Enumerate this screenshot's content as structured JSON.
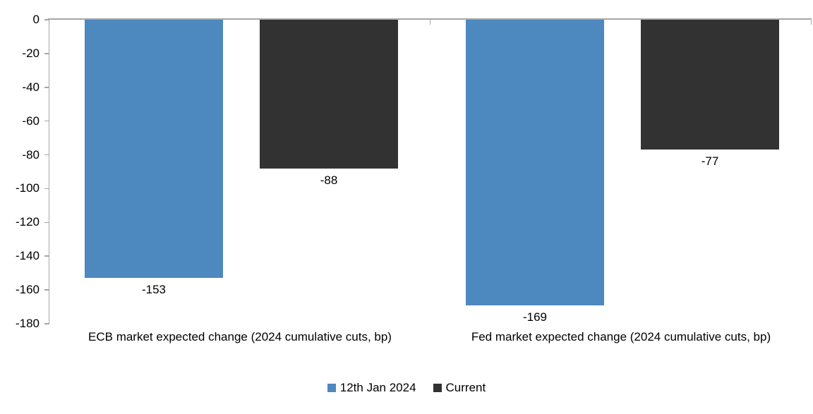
{
  "chart_data": {
    "type": "bar",
    "title": "",
    "categories": [
      "ECB market expected change (2024 cumulative cuts, bp)",
      "Fed market expected change (2024 cumulative cuts, bp)"
    ],
    "series": [
      {
        "name": "12th Jan 2024",
        "color": "#4D88BE",
        "values": [
          -153,
          -169
        ],
        "labels": [
          "-153",
          "-169"
        ]
      },
      {
        "name": "Current",
        "color": "#323232",
        "values": [
          -88,
          -77
        ],
        "labels": [
          "-88",
          "-77"
        ]
      }
    ],
    "y_axis": {
      "max": 0,
      "min": -180,
      "tick_interval": 20,
      "tick_labels": [
        "0",
        "-20",
        "-40",
        "-60",
        "-80",
        "-100",
        "-120",
        "-140",
        "-160",
        "-180"
      ]
    },
    "legend": {
      "position": "bottom",
      "entries": [
        {
          "label": "12th Jan 2024",
          "color": "#4D88BE"
        },
        {
          "label": "Current",
          "color": "#323232"
        }
      ]
    },
    "colors": {
      "axis": "#A6A6A6",
      "text": "#000000",
      "background": "#FFFFFF"
    },
    "grid": false
  }
}
